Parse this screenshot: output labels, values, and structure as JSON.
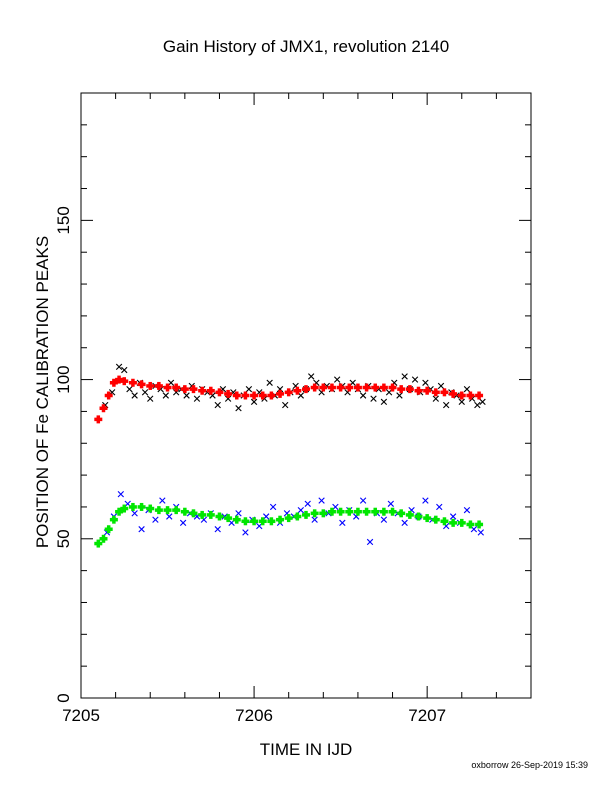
{
  "chart_data": {
    "type": "scatter",
    "title": "Gain History of JMX1, revolution 2140",
    "xlabel": "TIME IN IJD",
    "ylabel": "POSITION OF Fe CALIBRATION PEAKS",
    "xlim": [
      7205.0,
      7207.6
    ],
    "ylim": [
      0,
      190
    ],
    "x_ticks": [
      "7205",
      "7206",
      "7207"
    ],
    "y_ticks": [
      "0",
      "50",
      "100",
      "150"
    ],
    "grid": false,
    "footer": "oxborrow 26-Sep-2019 15:39",
    "series": [
      {
        "role": "high peak measurements",
        "marker": "x",
        "color": "#000000",
        "x": [
          7205.14,
          7205.18,
          7205.22,
          7205.25,
          7205.28,
          7205.31,
          7205.34,
          7205.37,
          7205.4,
          7205.43,
          7205.46,
          7205.49,
          7205.52,
          7205.55,
          7205.58,
          7205.61,
          7205.64,
          7205.67,
          7205.7,
          7205.73,
          7205.76,
          7205.79,
          7205.82,
          7205.85,
          7205.88,
          7205.91,
          7205.94,
          7205.97,
          7206.0,
          7206.03,
          7206.06,
          7206.09,
          7206.12,
          7206.15,
          7206.18,
          7206.21,
          7206.24,
          7206.27,
          7206.3,
          7206.33,
          7206.36,
          7206.39,
          7206.42,
          7206.45,
          7206.48,
          7206.51,
          7206.54,
          7206.57,
          7206.6,
          7206.63,
          7206.66,
          7206.69,
          7206.72,
          7206.75,
          7206.78,
          7206.81,
          7206.84,
          7206.87,
          7206.9,
          7206.93,
          7206.96,
          7206.99,
          7207.02,
          7207.05,
          7207.08,
          7207.11,
          7207.14,
          7207.17,
          7207.2,
          7207.23,
          7207.26,
          7207.29,
          7207.32
        ],
        "y": [
          92,
          96,
          104,
          103,
          97,
          95,
          99,
          96,
          94,
          98,
          97,
          95,
          99,
          96,
          97,
          95,
          98,
          94,
          97,
          96,
          95,
          92,
          97,
          94,
          96,
          91,
          95,
          97,
          93,
          96,
          94,
          99,
          95,
          97,
          92,
          96,
          98,
          95,
          97,
          101,
          99,
          96,
          98,
          97,
          100,
          98,
          96,
          99,
          97,
          95,
          98,
          94,
          97,
          93,
          96,
          99,
          95,
          101,
          97,
          100,
          96,
          99,
          97,
          94,
          98,
          92,
          96,
          95,
          93,
          97,
          94,
          92,
          93
        ]
      },
      {
        "role": "high peak fit",
        "marker": "+",
        "color": "#ff0000",
        "x": [
          7205.1,
          7205.13,
          7205.16,
          7205.19,
          7205.22,
          7205.25,
          7205.3,
          7205.35,
          7205.4,
          7205.45,
          7205.5,
          7205.55,
          7205.6,
          7205.65,
          7205.7,
          7205.75,
          7205.8,
          7205.85,
          7205.9,
          7205.95,
          7206.0,
          7206.05,
          7206.1,
          7206.15,
          7206.2,
          7206.25,
          7206.3,
          7206.35,
          7206.4,
          7206.45,
          7206.5,
          7206.55,
          7206.6,
          7206.65,
          7206.7,
          7206.75,
          7206.8,
          7206.85,
          7206.9,
          7206.95,
          7207.0,
          7207.05,
          7207.1,
          7207.15,
          7207.2,
          7207.25,
          7207.3
        ],
        "y": [
          87.5,
          91,
          95,
          99,
          100,
          99.5,
          99,
          98.5,
          98,
          98,
          97.5,
          97.5,
          97,
          97,
          96.5,
          96.5,
          96,
          95.5,
          95,
          95,
          95,
          95,
          95,
          95.5,
          96,
          96.5,
          97,
          97.5,
          97.5,
          97.5,
          97.5,
          97.5,
          97.5,
          97.5,
          97.5,
          97.5,
          97.5,
          97,
          97,
          96.5,
          96.5,
          96,
          96,
          95.5,
          95,
          95,
          95
        ]
      },
      {
        "role": "low peak measurements",
        "marker": "x",
        "color": "#0000ff",
        "x": [
          7205.15,
          7205.19,
          7205.23,
          7205.27,
          7205.31,
          7205.35,
          7205.39,
          7205.43,
          7205.47,
          7205.51,
          7205.55,
          7205.59,
          7205.63,
          7205.67,
          7205.71,
          7205.75,
          7205.79,
          7205.83,
          7205.87,
          7205.91,
          7205.95,
          7205.99,
          7206.03,
          7206.07,
          7206.11,
          7206.15,
          7206.19,
          7206.23,
          7206.27,
          7206.31,
          7206.35,
          7206.39,
          7206.43,
          7206.47,
          7206.51,
          7206.55,
          7206.59,
          7206.63,
          7206.67,
          7206.71,
          7206.75,
          7206.79,
          7206.83,
          7206.87,
          7206.91,
          7206.95,
          7206.99,
          7207.03,
          7207.07,
          7207.11,
          7207.15,
          7207.19,
          7207.23,
          7207.27,
          7207.31
        ],
        "y": [
          52,
          57,
          64,
          61,
          58,
          53,
          59,
          56,
          62,
          57,
          60,
          55,
          58,
          57,
          56,
          58,
          53,
          57,
          55,
          58,
          52,
          56,
          54,
          57,
          60,
          55,
          58,
          57,
          59,
          61,
          56,
          62,
          58,
          60,
          55,
          59,
          57,
          62,
          49,
          58,
          56,
          61,
          58,
          55,
          59,
          57,
          62,
          56,
          60,
          54,
          57,
          55,
          59,
          53,
          52
        ]
      },
      {
        "role": "low peak fit",
        "marker": "+",
        "color": "#00e600",
        "x": [
          7205.1,
          7205.13,
          7205.16,
          7205.19,
          7205.22,
          7205.25,
          7205.3,
          7205.35,
          7205.4,
          7205.45,
          7205.5,
          7205.55,
          7205.6,
          7205.65,
          7205.7,
          7205.75,
          7205.8,
          7205.85,
          7205.9,
          7205.95,
          7206.0,
          7206.05,
          7206.1,
          7206.15,
          7206.2,
          7206.25,
          7206.3,
          7206.35,
          7206.4,
          7206.45,
          7206.5,
          7206.55,
          7206.6,
          7206.65,
          7206.7,
          7206.75,
          7206.8,
          7206.85,
          7206.9,
          7206.95,
          7207.0,
          7207.05,
          7207.1,
          7207.15,
          7207.2,
          7207.25,
          7207.3
        ],
        "y": [
          48.5,
          50,
          53,
          56,
          58.5,
          59.5,
          60,
          60,
          59.5,
          59,
          59,
          59,
          58.5,
          58,
          57.5,
          57.5,
          57,
          56.5,
          56,
          55.5,
          55.5,
          55.5,
          55.5,
          56,
          56.5,
          57,
          57.5,
          58,
          58,
          58.5,
          58.5,
          58.5,
          58.5,
          58.5,
          58.5,
          58.5,
          58.5,
          58,
          57.5,
          57,
          56.5,
          56,
          55.5,
          55,
          55,
          54.5,
          54.5
        ]
      }
    ]
  }
}
